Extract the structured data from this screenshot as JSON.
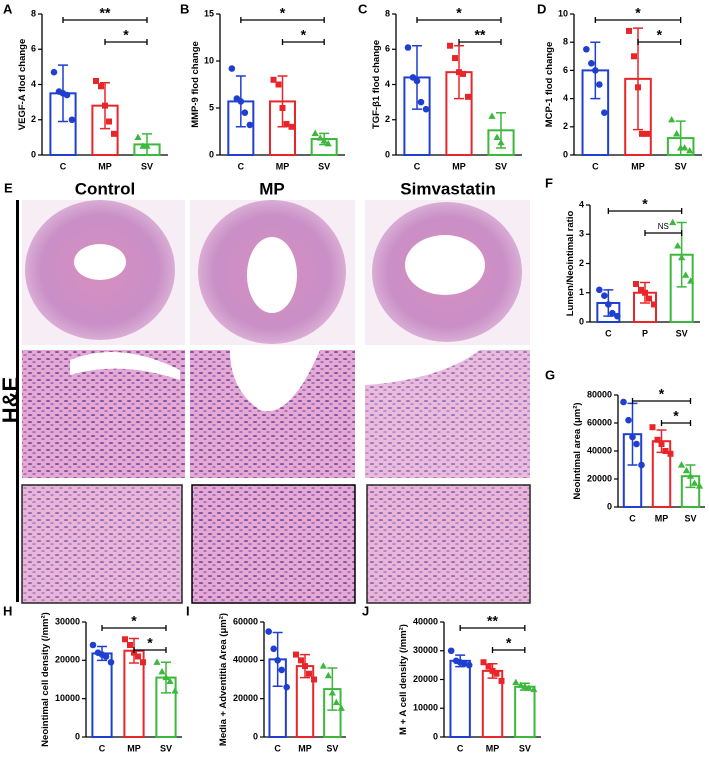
{
  "chart_data": [
    {
      "type": "bar",
      "panel": "A",
      "ylabel": "VEGF-A flod change",
      "categories": [
        "C",
        "MP",
        "SV"
      ],
      "colors": [
        "#1f3fd0",
        "#e8262a",
        "#3cb83c"
      ],
      "values": [
        3.5,
        2.8,
        0.6
      ],
      "errors": [
        1.6,
        1.3,
        0.6
      ],
      "points": [
        [
          4.7,
          3.6,
          3.5,
          3.4,
          2.0
        ],
        [
          4.2,
          3.9,
          2.8,
          1.9,
          1.2
        ],
        [
          1.0,
          0.5,
          0.5
        ]
      ],
      "ylim": [
        0,
        8
      ],
      "yticks": [
        0,
        2,
        4,
        6,
        8
      ],
      "annotations": [
        {
          "between": [
            "C",
            "SV"
          ],
          "label": "**"
        },
        {
          "between": [
            "MP",
            "SV"
          ],
          "label": "*"
        }
      ]
    },
    {
      "type": "bar",
      "panel": "B",
      "ylabel": "MMP-9 flod change",
      "categories": [
        "C",
        "MP",
        "SV"
      ],
      "colors": [
        "#1f3fd0",
        "#e8262a",
        "#3cb83c"
      ],
      "values": [
        5.7,
        5.7,
        1.7
      ],
      "errors": [
        2.7,
        2.7,
        0.6
      ],
      "points": [
        [
          9.2,
          6.0,
          5.7,
          4.5,
          3.2
        ],
        [
          8.0,
          7.5,
          5.0,
          3.3,
          3.0
        ],
        [
          2.3,
          1.8,
          1.5,
          1.2
        ]
      ],
      "ylim": [
        0,
        15
      ],
      "yticks": [
        0,
        5,
        10,
        15
      ],
      "annotations": [
        {
          "between": [
            "C",
            "SV"
          ],
          "label": "*"
        },
        {
          "between": [
            "MP",
            "SV"
          ],
          "label": "*"
        }
      ]
    },
    {
      "type": "bar",
      "panel": "C",
      "ylabel": "TGF-β1 flod change",
      "categories": [
        "C",
        "MP",
        "SV"
      ],
      "colors": [
        "#1f3fd0",
        "#e8262a",
        "#3cb83c"
      ],
      "values": [
        4.4,
        4.7,
        1.4
      ],
      "errors": [
        1.8,
        1.5,
        1.0
      ],
      "points": [
        [
          6.1,
          4.4,
          4.2,
          3.0,
          2.6
        ],
        [
          6.2,
          5.5,
          4.7,
          4.6,
          3.3
        ],
        [
          2.2,
          1.0,
          0.7
        ]
      ],
      "ylim": [
        0,
        8
      ],
      "yticks": [
        0,
        2,
        4,
        6,
        8
      ],
      "annotations": [
        {
          "between": [
            "C",
            "SV"
          ],
          "label": "*"
        },
        {
          "between": [
            "MP",
            "SV"
          ],
          "label": "**"
        }
      ]
    },
    {
      "type": "bar",
      "panel": "D",
      "ylabel": "MCP-1 flod change",
      "categories": [
        "C",
        "MP",
        "SV"
      ],
      "colors": [
        "#1f3fd0",
        "#e8262a",
        "#3cb83c"
      ],
      "values": [
        6.0,
        5.4,
        1.2
      ],
      "errors": [
        2.0,
        3.6,
        1.2
      ],
      "points": [
        [
          7.5,
          6.5,
          6.0,
          5.0,
          3.0
        ],
        [
          8.8,
          7.0,
          4.8,
          1.5,
          1.5
        ],
        [
          2.5,
          1.5,
          0.5,
          0.5,
          0.3
        ]
      ],
      "ylim": [
        0,
        10
      ],
      "yticks": [
        0,
        2,
        4,
        6,
        8,
        10
      ],
      "annotations": [
        {
          "between": [
            "C",
            "SV"
          ],
          "label": "*"
        },
        {
          "between": [
            "MP",
            "SV"
          ],
          "label": "*"
        }
      ]
    },
    {
      "type": "bar",
      "panel": "F",
      "ylabel": "Lumen/Neointimal ratio",
      "categories": [
        "C",
        "P",
        "SV"
      ],
      "colors": [
        "#1f3fd0",
        "#e8262a",
        "#3cb83c"
      ],
      "values": [
        0.65,
        1.0,
        2.3
      ],
      "errors": [
        0.45,
        0.35,
        1.1
      ],
      "points": [
        [
          1.1,
          0.9,
          0.6,
          0.3,
          0.2
        ],
        [
          1.3,
          1.1,
          1.0,
          0.8,
          0.6
        ],
        [
          3.4,
          2.6,
          2.2,
          1.6,
          1.4
        ]
      ],
      "ylim": [
        0,
        4
      ],
      "yticks": [
        0,
        1,
        2,
        3,
        4
      ],
      "annotations": [
        {
          "between": [
            "C",
            "SV"
          ],
          "label": "*"
        },
        {
          "between": [
            "P",
            "SV"
          ],
          "label": "NS"
        }
      ]
    },
    {
      "type": "bar",
      "panel": "G",
      "ylabel": "Neointimal area (μm²)",
      "categories": [
        "C",
        "MP",
        "SV"
      ],
      "colors": [
        "#1f3fd0",
        "#e8262a",
        "#3cb83c"
      ],
      "values": [
        52000,
        47000,
        22000
      ],
      "errors": [
        22000,
        8000,
        8000
      ],
      "points": [
        [
          75000,
          62000,
          50000,
          45000,
          30000
        ],
        [
          57000,
          48000,
          45000,
          40000,
          38000
        ],
        [
          30000,
          26000,
          22000,
          17000,
          15000
        ]
      ],
      "ylim": [
        0,
        80000
      ],
      "yticks": [
        0,
        20000,
        40000,
        60000,
        80000
      ],
      "annotations": [
        {
          "between": [
            "C",
            "SV"
          ],
          "label": "*"
        },
        {
          "between": [
            "MP",
            "SV"
          ],
          "label": "*"
        }
      ]
    },
    {
      "type": "bar",
      "panel": "H",
      "ylabel": "Neointimal cell density (/mm²)",
      "categories": [
        "C",
        "MP",
        "SV"
      ],
      "colors": [
        "#1f3fd0",
        "#e8262a",
        "#3cb83c"
      ],
      "values": [
        21800,
        22500,
        15500
      ],
      "errors": [
        1800,
        3200,
        4000
      ],
      "points": [
        [
          24000,
          22000,
          21500,
          21000,
          19500
        ],
        [
          25500,
          24000,
          22000,
          21000,
          19500
        ],
        [
          19500,
          17000,
          15500,
          14500,
          12000
        ]
      ],
      "ylim": [
        0,
        30000
      ],
      "yticks": [
        0,
        10000,
        20000,
        30000
      ],
      "annotations": [
        {
          "between": [
            "C",
            "SV"
          ],
          "label": "*"
        },
        {
          "between": [
            "MP",
            "SV"
          ],
          "label": "*"
        }
      ]
    },
    {
      "type": "bar",
      "panel": "I",
      "ylabel": "Media + Adventitia Area (μm²)",
      "categories": [
        "C",
        "MP",
        "SV"
      ],
      "colors": [
        "#1f3fd0",
        "#e8262a",
        "#3cb83c"
      ],
      "values": [
        40500,
        37000,
        25000
      ],
      "errors": [
        14000,
        6000,
        11000
      ],
      "points": [
        [
          55000,
          46000,
          40000,
          35000,
          26000
        ],
        [
          43000,
          40000,
          37000,
          33000,
          30000
        ],
        [
          37000,
          32000,
          23000,
          18000,
          15000
        ]
      ],
      "ylim": [
        0,
        60000
      ],
      "yticks": [
        0,
        20000,
        40000,
        60000
      ],
      "annotations": []
    },
    {
      "type": "bar",
      "panel": "J",
      "ylabel": "M + A cell density (/mm²)",
      "categories": [
        "C",
        "MP",
        "SV"
      ],
      "colors": [
        "#1f3fd0",
        "#e8262a",
        "#3cb83c"
      ],
      "values": [
        26500,
        23000,
        17500
      ],
      "errors": [
        2000,
        2500,
        1200
      ],
      "points": [
        [
          30000,
          26500,
          26000,
          25500,
          25000
        ],
        [
          26000,
          24500,
          23000,
          22000,
          19500
        ],
        [
          19000,
          18000,
          17500,
          17000,
          16500
        ]
      ],
      "ylim": [
        0,
        40000
      ],
      "yticks": [
        0,
        10000,
        20000,
        30000,
        40000
      ],
      "annotations": [
        {
          "between": [
            "C",
            "SV"
          ],
          "label": "**"
        },
        {
          "between": [
            "MP",
            "SV"
          ],
          "label": "*"
        }
      ]
    }
  ],
  "histology": {
    "panel": "E",
    "stain": "H&E",
    "columns": [
      "Control",
      "MP",
      "Simvastatin"
    ]
  }
}
